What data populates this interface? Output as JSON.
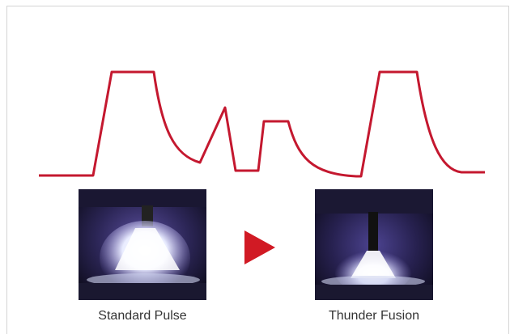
{
  "colors": {
    "waveform": "#c4182f",
    "arrow": "#d11a24",
    "frame": "#d4d4d4",
    "caption": "#333333",
    "arc_glow": "#f4f6ff",
    "background_dark": "#1a1732"
  },
  "arrow_icon": "play-triangle-icon",
  "panels": [
    {
      "caption": "Standard Pulse",
      "image": "welding-arc-photo"
    },
    {
      "caption": "Thunder Fusion",
      "image": "welding-arc-photo"
    }
  ]
}
